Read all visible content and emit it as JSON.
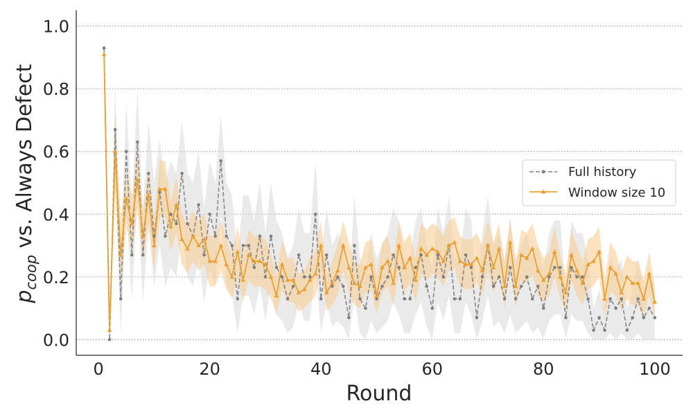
{
  "chart_data": {
    "type": "line",
    "xlabel": "Round",
    "ylabel": {
      "p": "p",
      "sub": "coop",
      "rest": " vs. Always Defect"
    },
    "xlim": [
      -4,
      105
    ],
    "ylim": [
      -0.05,
      1.05
    ],
    "xticks": [
      0,
      20,
      40,
      60,
      80,
      100
    ],
    "xtick_labels": [
      "0",
      "20",
      "40",
      "60",
      "80",
      "100"
    ],
    "yticks": [
      0.0,
      0.2,
      0.4,
      0.6,
      0.8,
      1.0
    ],
    "ytick_labels": [
      "0.0",
      "0.2",
      "0.4",
      "0.6",
      "0.8",
      "1.0"
    ],
    "grid": "horizontal dotted",
    "legend_position": "center-right",
    "series": [
      {
        "name": "Full history",
        "color": "#7f7f7f",
        "linestyle": "dashed",
        "marker": "circle",
        "band_color": "#d9d9d9",
        "x": [
          1,
          2,
          3,
          4,
          5,
          6,
          7,
          8,
          9,
          10,
          11,
          12,
          13,
          14,
          15,
          16,
          17,
          18,
          19,
          20,
          21,
          22,
          23,
          24,
          25,
          26,
          27,
          28,
          29,
          30,
          31,
          32,
          33,
          34,
          35,
          36,
          37,
          38,
          39,
          40,
          41,
          42,
          43,
          44,
          45,
          46,
          47,
          48,
          49,
          50,
          51,
          52,
          53,
          54,
          55,
          56,
          57,
          58,
          59,
          60,
          61,
          62,
          63,
          64,
          65,
          66,
          67,
          68,
          69,
          70,
          71,
          72,
          73,
          74,
          75,
          76,
          77,
          78,
          79,
          80,
          81,
          82,
          83,
          84,
          85,
          86,
          87,
          88,
          89,
          90,
          91,
          92,
          93,
          94,
          95,
          96,
          97,
          98,
          99,
          100
        ],
        "values": [
          0.93,
          0.0,
          0.67,
          0.13,
          0.6,
          0.27,
          0.63,
          0.27,
          0.53,
          0.33,
          0.47,
          0.33,
          0.4,
          0.37,
          0.53,
          0.37,
          0.33,
          0.43,
          0.27,
          0.4,
          0.33,
          0.57,
          0.33,
          0.3,
          0.13,
          0.3,
          0.3,
          0.23,
          0.33,
          0.2,
          0.33,
          0.23,
          0.2,
          0.13,
          0.17,
          0.27,
          0.2,
          0.2,
          0.4,
          0.13,
          0.27,
          0.17,
          0.2,
          0.17,
          0.07,
          0.3,
          0.13,
          0.1,
          0.2,
          0.13,
          0.17,
          0.2,
          0.27,
          0.23,
          0.13,
          0.13,
          0.23,
          0.27,
          0.17,
          0.1,
          0.27,
          0.2,
          0.3,
          0.13,
          0.13,
          0.27,
          0.23,
          0.07,
          0.2,
          0.3,
          0.17,
          0.2,
          0.13,
          0.23,
          0.13,
          0.17,
          0.2,
          0.13,
          0.17,
          0.1,
          0.2,
          0.23,
          0.23,
          0.07,
          0.23,
          0.2,
          0.2,
          0.13,
          0.03,
          0.07,
          0.03,
          0.13,
          0.1,
          0.13,
          0.03,
          0.07,
          0.13,
          0.07,
          0.1,
          0.07
        ],
        "lower": [
          0.85,
          0.0,
          0.5,
          0.02,
          0.42,
          0.12,
          0.45,
          0.12,
          0.36,
          0.17,
          0.3,
          0.17,
          0.23,
          0.2,
          0.36,
          0.2,
          0.17,
          0.26,
          0.12,
          0.23,
          0.17,
          0.4,
          0.17,
          0.14,
          0.02,
          0.14,
          0.14,
          0.08,
          0.17,
          0.06,
          0.17,
          0.08,
          0.06,
          0.02,
          0.04,
          0.12,
          0.06,
          0.06,
          0.23,
          0.02,
          0.12,
          0.04,
          0.06,
          0.04,
          0.0,
          0.14,
          0.02,
          0.0,
          0.06,
          0.02,
          0.04,
          0.06,
          0.12,
          0.08,
          0.02,
          0.02,
          0.08,
          0.12,
          0.04,
          0.0,
          0.12,
          0.06,
          0.14,
          0.02,
          0.02,
          0.12,
          0.08,
          0.0,
          0.06,
          0.14,
          0.04,
          0.06,
          0.02,
          0.08,
          0.02,
          0.04,
          0.06,
          0.02,
          0.04,
          0.0,
          0.06,
          0.08,
          0.08,
          0.0,
          0.08,
          0.06,
          0.06,
          0.02,
          0.0,
          0.0,
          0.0,
          0.02,
          0.0,
          0.02,
          0.0,
          0.0,
          0.02,
          0.0,
          0.0,
          0.0
        ],
        "upper": [
          1.0,
          0.0,
          0.82,
          0.26,
          0.76,
          0.42,
          0.8,
          0.42,
          0.7,
          0.5,
          0.64,
          0.5,
          0.57,
          0.53,
          0.7,
          0.53,
          0.5,
          0.6,
          0.42,
          0.57,
          0.5,
          0.72,
          0.5,
          0.46,
          0.26,
          0.46,
          0.46,
          0.38,
          0.5,
          0.34,
          0.5,
          0.38,
          0.34,
          0.26,
          0.3,
          0.42,
          0.34,
          0.34,
          0.57,
          0.26,
          0.42,
          0.3,
          0.34,
          0.3,
          0.16,
          0.46,
          0.26,
          0.22,
          0.34,
          0.26,
          0.3,
          0.34,
          0.42,
          0.38,
          0.26,
          0.26,
          0.38,
          0.42,
          0.3,
          0.22,
          0.42,
          0.34,
          0.46,
          0.26,
          0.26,
          0.42,
          0.38,
          0.16,
          0.34,
          0.46,
          0.3,
          0.34,
          0.26,
          0.38,
          0.26,
          0.3,
          0.34,
          0.26,
          0.3,
          0.22,
          0.34,
          0.38,
          0.38,
          0.16,
          0.38,
          0.34,
          0.34,
          0.26,
          0.1,
          0.16,
          0.1,
          0.26,
          0.22,
          0.26,
          0.1,
          0.16,
          0.26,
          0.16,
          0.22,
          0.16
        ]
      },
      {
        "name": "Window size 10",
        "color": "#e8a130",
        "linestyle": "solid",
        "marker": "triangle",
        "band_color": "#f7cf97",
        "x": [
          1,
          2,
          3,
          4,
          5,
          6,
          7,
          8,
          9,
          10,
          11,
          12,
          13,
          14,
          15,
          16,
          17,
          18,
          19,
          20,
          21,
          22,
          23,
          24,
          25,
          26,
          27,
          28,
          29,
          30,
          31,
          32,
          33,
          34,
          35,
          36,
          37,
          38,
          39,
          40,
          41,
          42,
          43,
          44,
          45,
          46,
          47,
          48,
          49,
          50,
          51,
          52,
          53,
          54,
          55,
          56,
          57,
          58,
          59,
          60,
          61,
          62,
          63,
          64,
          65,
          66,
          67,
          68,
          69,
          70,
          71,
          72,
          73,
          74,
          75,
          76,
          77,
          78,
          79,
          80,
          81,
          82,
          83,
          84,
          85,
          86,
          87,
          88,
          89,
          90,
          91,
          92,
          93,
          94,
          95,
          96,
          97,
          98,
          99,
          100
        ],
        "values": [
          0.91,
          0.03,
          0.6,
          0.27,
          0.45,
          0.37,
          0.51,
          0.33,
          0.46,
          0.3,
          0.48,
          0.48,
          0.36,
          0.43,
          0.32,
          0.29,
          0.33,
          0.3,
          0.32,
          0.25,
          0.25,
          0.3,
          0.24,
          0.2,
          0.28,
          0.19,
          0.27,
          0.25,
          0.25,
          0.24,
          0.2,
          0.14,
          0.24,
          0.19,
          0.19,
          0.15,
          0.16,
          0.19,
          0.21,
          0.3,
          0.15,
          0.18,
          0.22,
          0.3,
          0.23,
          0.18,
          0.17,
          0.23,
          0.24,
          0.14,
          0.23,
          0.25,
          0.18,
          0.3,
          0.23,
          0.26,
          0.19,
          0.29,
          0.27,
          0.29,
          0.28,
          0.25,
          0.3,
          0.31,
          0.25,
          0.24,
          0.24,
          0.26,
          0.22,
          0.3,
          0.23,
          0.29,
          0.17,
          0.31,
          0.17,
          0.27,
          0.26,
          0.29,
          0.22,
          0.19,
          0.21,
          0.28,
          0.2,
          0.15,
          0.27,
          0.22,
          0.18,
          0.24,
          0.25,
          0.28,
          0.13,
          0.23,
          0.21,
          0.15,
          0.2,
          0.18,
          0.18,
          0.13,
          0.21,
          0.12
        ],
        "lower": [
          0.85,
          0.0,
          0.48,
          0.16,
          0.36,
          0.28,
          0.42,
          0.25,
          0.37,
          0.22,
          0.39,
          0.39,
          0.28,
          0.34,
          0.24,
          0.21,
          0.25,
          0.22,
          0.24,
          0.17,
          0.17,
          0.22,
          0.16,
          0.13,
          0.2,
          0.12,
          0.19,
          0.17,
          0.17,
          0.16,
          0.13,
          0.08,
          0.16,
          0.12,
          0.12,
          0.09,
          0.1,
          0.12,
          0.14,
          0.22,
          0.09,
          0.11,
          0.14,
          0.22,
          0.15,
          0.11,
          0.1,
          0.15,
          0.16,
          0.08,
          0.15,
          0.17,
          0.11,
          0.22,
          0.15,
          0.18,
          0.12,
          0.21,
          0.19,
          0.21,
          0.2,
          0.17,
          0.22,
          0.23,
          0.17,
          0.16,
          0.16,
          0.18,
          0.14,
          0.22,
          0.15,
          0.21,
          0.1,
          0.23,
          0.1,
          0.19,
          0.18,
          0.21,
          0.14,
          0.12,
          0.14,
          0.2,
          0.13,
          0.09,
          0.19,
          0.14,
          0.11,
          0.16,
          0.17,
          0.2,
          0.07,
          0.15,
          0.14,
          0.09,
          0.13,
          0.11,
          0.11,
          0.07,
          0.14,
          0.07
        ],
        "upper": [
          0.97,
          0.06,
          0.72,
          0.38,
          0.54,
          0.46,
          0.6,
          0.41,
          0.55,
          0.38,
          0.57,
          0.57,
          0.44,
          0.52,
          0.4,
          0.37,
          0.41,
          0.38,
          0.4,
          0.33,
          0.33,
          0.38,
          0.32,
          0.27,
          0.36,
          0.26,
          0.35,
          0.33,
          0.33,
          0.32,
          0.27,
          0.2,
          0.32,
          0.26,
          0.26,
          0.21,
          0.22,
          0.26,
          0.28,
          0.38,
          0.21,
          0.25,
          0.3,
          0.38,
          0.31,
          0.25,
          0.24,
          0.31,
          0.32,
          0.2,
          0.31,
          0.33,
          0.25,
          0.38,
          0.31,
          0.34,
          0.26,
          0.37,
          0.35,
          0.37,
          0.36,
          0.33,
          0.38,
          0.39,
          0.33,
          0.32,
          0.32,
          0.34,
          0.3,
          0.38,
          0.31,
          0.37,
          0.24,
          0.39,
          0.24,
          0.35,
          0.34,
          0.37,
          0.3,
          0.26,
          0.28,
          0.36,
          0.27,
          0.21,
          0.35,
          0.3,
          0.25,
          0.32,
          0.33,
          0.36,
          0.19,
          0.31,
          0.28,
          0.21,
          0.27,
          0.25,
          0.25,
          0.19,
          0.28,
          0.17
        ]
      }
    ]
  }
}
